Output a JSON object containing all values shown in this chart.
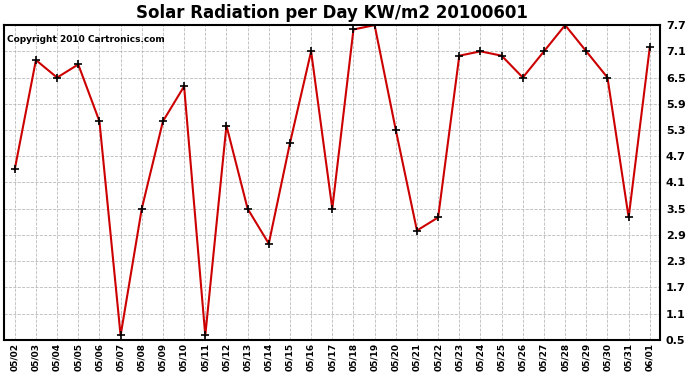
{
  "title": "Solar Radiation per Day KW/m2 20100601",
  "copyright": "Copyright 2010 Cartronics.com",
  "dates": [
    "05/02",
    "05/03",
    "05/04",
    "05/05",
    "05/06",
    "05/07",
    "05/08",
    "05/09",
    "05/10",
    "05/11",
    "05/12",
    "05/13",
    "05/14",
    "05/15",
    "05/16",
    "05/17",
    "05/18",
    "05/19",
    "05/20",
    "05/21",
    "05/22",
    "05/23",
    "05/24",
    "05/25",
    "05/26",
    "05/27",
    "05/28",
    "05/29",
    "05/30",
    "05/31",
    "06/01"
  ],
  "values": [
    4.4,
    6.9,
    6.5,
    6.8,
    5.5,
    0.6,
    3.5,
    5.5,
    6.3,
    0.6,
    5.4,
    3.5,
    2.7,
    5.0,
    7.1,
    3.5,
    7.6,
    7.7,
    5.3,
    3.0,
    3.3,
    7.0,
    7.1,
    7.0,
    6.5,
    7.1,
    7.7,
    7.1,
    6.5,
    3.3,
    7.2
  ],
  "line_color": "#cc0000",
  "marker_color": "#cc0000",
  "background_color": "#ffffff",
  "grid_color": "#aaaaaa",
  "ylim_min": 0.5,
  "ylim_max": 7.7,
  "yticks": [
    0.5,
    1.1,
    1.7,
    2.3,
    2.9,
    3.5,
    4.1,
    4.7,
    5.3,
    5.9,
    6.5,
    7.1,
    7.7
  ]
}
